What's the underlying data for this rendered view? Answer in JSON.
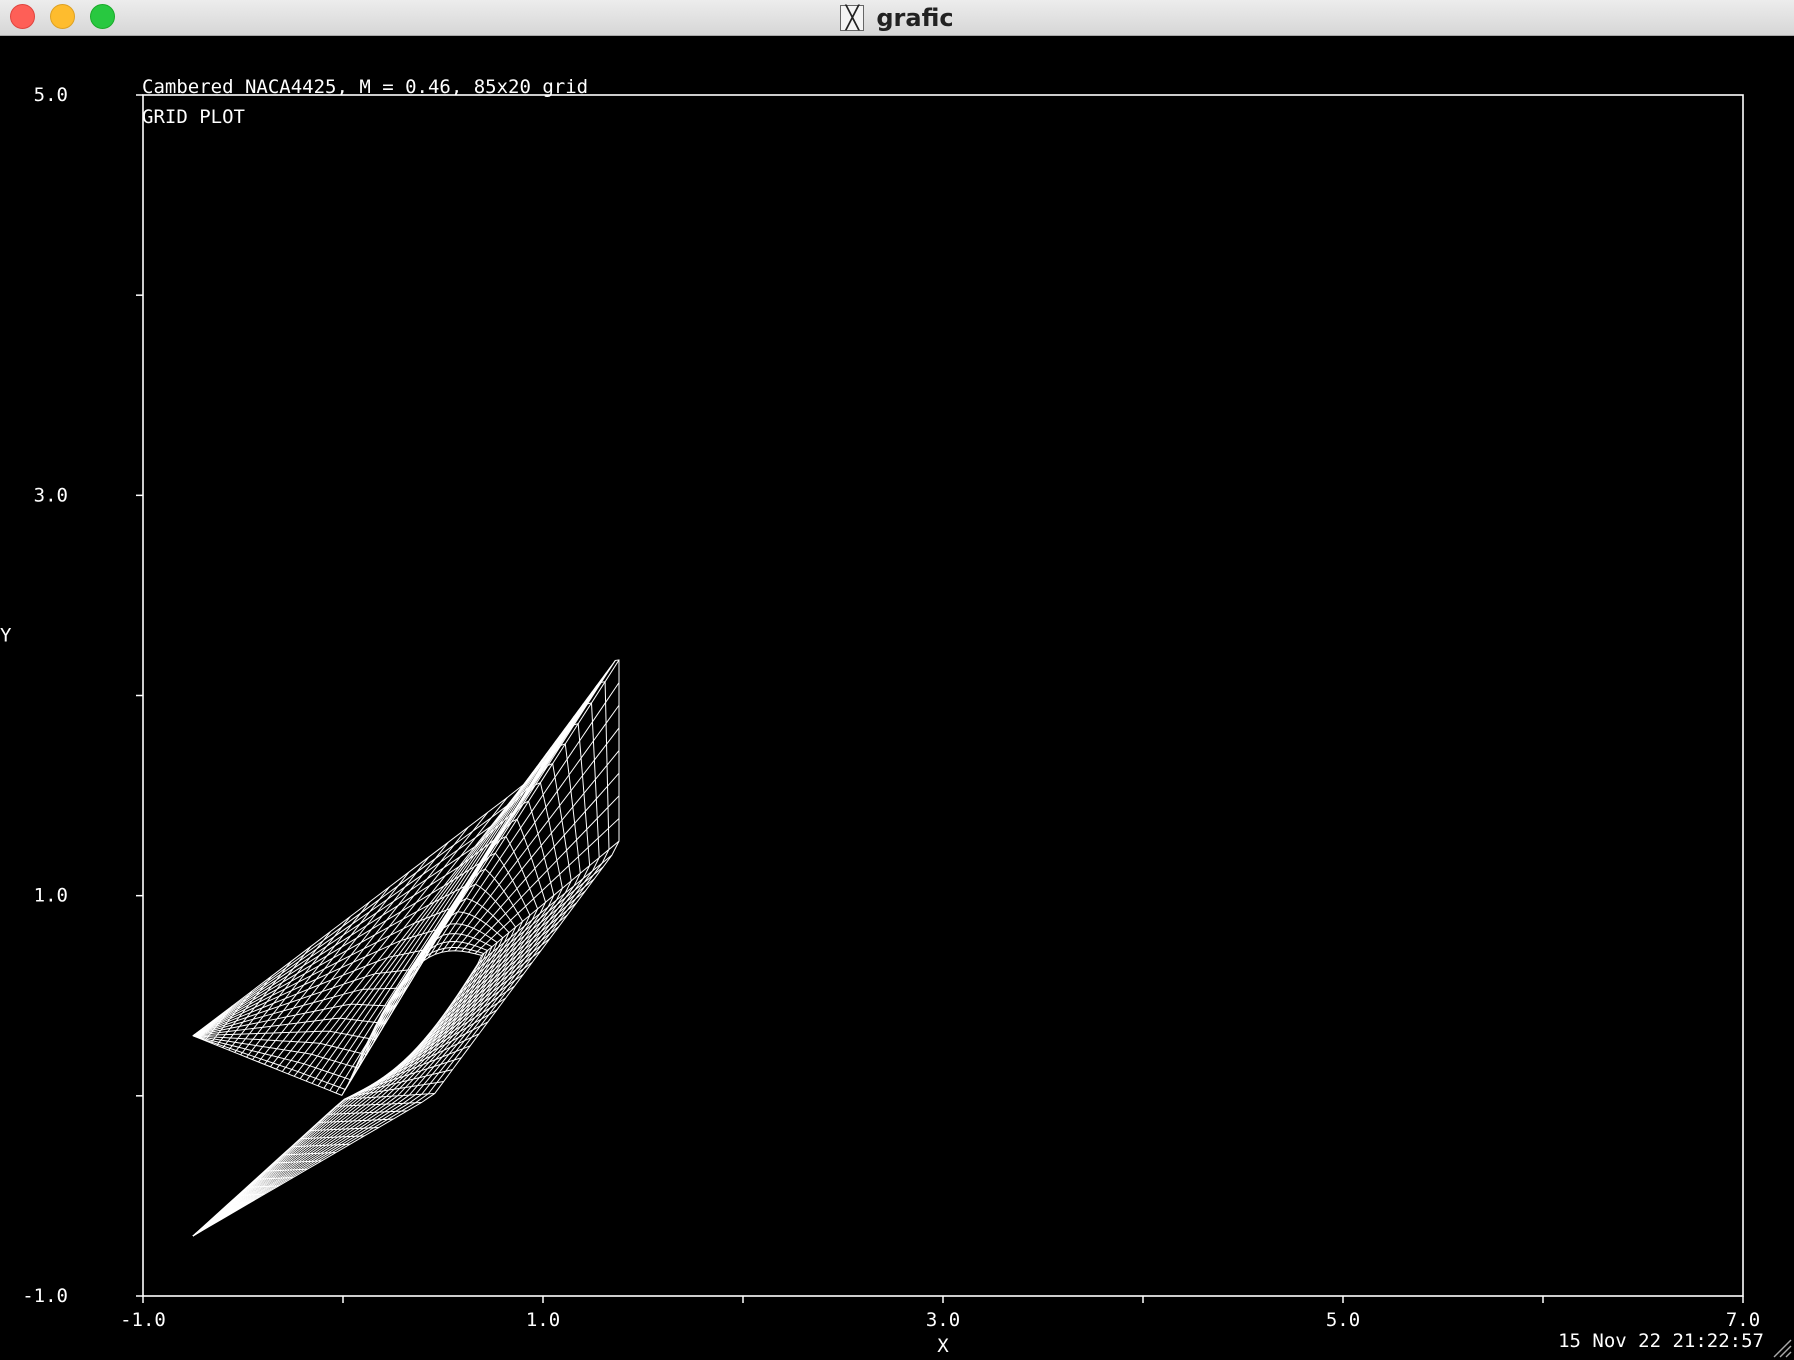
{
  "window": {
    "title": "grafic",
    "app_icon": "x11-icon"
  },
  "plot": {
    "heading": "Cambered NACA4425, M = 0.46, 85x20 grid",
    "subheading": "GRID PLOT",
    "timestamp": "15 Nov 22 21:22:57"
  },
  "chart_data": {
    "type": "scatter",
    "xlabel": "X",
    "ylabel": "Y",
    "xlim": [
      -1.0,
      7.0
    ],
    "ylim": [
      -1.0,
      5.0
    ],
    "x_ticks": [
      -1.0,
      0.0,
      1.0,
      2.0,
      3.0,
      4.0,
      5.0,
      6.0,
      7.0
    ],
    "x_tick_labels": [
      "-1.0",
      "",
      "1.0",
      "",
      "3.0",
      "",
      "5.0",
      "",
      "7.0"
    ],
    "y_ticks": [
      -1.0,
      0.0,
      1.0,
      2.0,
      3.0,
      4.0,
      5.0
    ],
    "y_tick_labels": [
      "-1.0",
      "",
      "1.0",
      "",
      "3.0",
      "",
      "5.0"
    ],
    "grid": false,
    "line_color": "#ffffff",
    "background_color": "#000000",
    "mesh": {
      "i_lines": 85,
      "j_lines": 20,
      "airfoil": "NACA4425",
      "inflow_upper_corner": [
        -0.75,
        0.3
      ],
      "inflow_lower_corner": [
        -0.75,
        -0.7
      ],
      "outflow_upper_corner": [
        1.38,
        2.2
      ],
      "outflow_lower_corner": [
        1.38,
        1.25
      ],
      "leading_edge": [
        0.0,
        0.0
      ],
      "trailing_edge": [
        0.7,
        0.7
      ]
    }
  }
}
